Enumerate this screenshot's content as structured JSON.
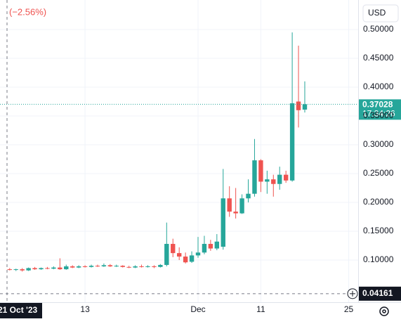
{
  "chart_data": {
    "type": "candlestick",
    "change_label": "(−2.56%)",
    "currency": "USD",
    "countdown": "17:34:26",
    "crosshair": {
      "value": 0.04161,
      "date_label": "21 Oct '23"
    },
    "up_color": "#26a69a",
    "down_color": "#ef5350",
    "grid": true,
    "ylim": [
      0.0268,
      0.5512
    ],
    "yticks": [
      {
        "value": 0.1,
        "label": "0.10000"
      },
      {
        "value": 0.15,
        "label": "0.15000"
      },
      {
        "value": 0.2,
        "label": "0.20000"
      },
      {
        "value": 0.25,
        "label": "0.25000"
      },
      {
        "value": 0.3,
        "label": "0.30000"
      },
      {
        "value": 0.35,
        "label": "0.35000"
      },
      {
        "value": 0.4,
        "label": "0.40000"
      },
      {
        "value": 0.45,
        "label": "0.45000"
      },
      {
        "value": 0.5,
        "label": "0.50000"
      }
    ],
    "categories": [
      null,
      null,
      null,
      null,
      null,
      null,
      null,
      null,
      null,
      null,
      null,
      null,
      "13",
      null,
      null,
      null,
      null,
      null,
      null,
      null,
      null,
      null,
      null,
      null,
      null,
      null,
      null,
      null,
      null,
      null,
      "Dec",
      null,
      null,
      null,
      null,
      null,
      null,
      null,
      null,
      null,
      "11",
      null,
      null,
      null,
      null,
      null,
      null,
      null,
      null,
      null,
      null,
      null,
      null,
      null,
      "25",
      null
    ],
    "open": [
      0.084,
      0.083,
      0.084,
      0.082,
      0.086,
      0.084,
      0.086,
      0.085,
      0.087,
      0.084,
      0.089,
      0.087,
      0.089,
      0.088,
      0.09,
      0.089,
      0.091,
      0.089,
      0.09,
      0.088,
      0.087,
      0.089,
      0.088,
      0.089,
      0.088,
      0.0915,
      0.128,
      0.112,
      0.106,
      0.097,
      0.108,
      0.113,
      0.128,
      0.12,
      0.123,
      0.207,
      0.184,
      0.181,
      0.207,
      0.215,
      0.273,
      0.236,
      0.24,
      0.232,
      0.248,
      0.238,
      0.375,
      0.361,
      null,
      null,
      null,
      null,
      null,
      null,
      null,
      null
    ],
    "high": [
      0.086,
      0.085,
      0.086,
      0.087,
      0.088,
      0.087,
      0.088,
      0.089,
      0.103,
      0.092,
      0.091,
      0.091,
      0.091,
      0.092,
      0.092,
      0.094,
      0.093,
      0.092,
      0.091,
      0.09,
      0.091,
      0.092,
      0.091,
      0.091,
      0.093,
      0.165,
      0.137,
      0.122,
      0.113,
      0.115,
      0.14,
      0.142,
      0.135,
      0.145,
      0.258,
      0.228,
      0.225,
      0.214,
      0.24,
      0.31,
      0.275,
      0.255,
      0.248,
      0.262,
      0.255,
      0.495,
      0.472,
      0.41,
      null,
      null,
      null,
      null,
      null,
      null,
      null,
      null
    ],
    "low": [
      0.082,
      0.081,
      0.08,
      0.081,
      0.083,
      0.083,
      0.084,
      0.084,
      0.083,
      0.083,
      0.086,
      0.086,
      0.087,
      0.087,
      0.088,
      0.088,
      0.088,
      0.088,
      0.087,
      0.086,
      0.086,
      0.087,
      0.087,
      0.086,
      0.087,
      0.089,
      0.105,
      0.1,
      0.094,
      0.095,
      0.104,
      0.11,
      0.116,
      0.117,
      0.118,
      0.175,
      0.172,
      0.18,
      0.2,
      0.21,
      0.218,
      0.215,
      0.21,
      0.222,
      0.234,
      0.236,
      0.33,
      0.356,
      null,
      null,
      null,
      null,
      null,
      null,
      null,
      null
    ],
    "close": [
      0.083,
      0.084,
      0.082,
      0.086,
      0.084,
      0.086,
      0.085,
      0.087,
      0.084,
      0.089,
      0.087,
      0.089,
      0.088,
      0.09,
      0.089,
      0.091,
      0.089,
      0.09,
      0.088,
      0.087,
      0.089,
      0.088,
      0.089,
      0.088,
      0.0915,
      0.128,
      0.112,
      0.106,
      0.096,
      0.108,
      0.113,
      0.128,
      0.12,
      0.132,
      0.207,
      0.184,
      0.181,
      0.207,
      0.215,
      0.273,
      0.236,
      0.24,
      0.232,
      0.248,
      0.238,
      0.372,
      0.36,
      0.37028,
      null,
      null,
      null,
      null,
      null,
      null,
      null,
      null
    ]
  }
}
